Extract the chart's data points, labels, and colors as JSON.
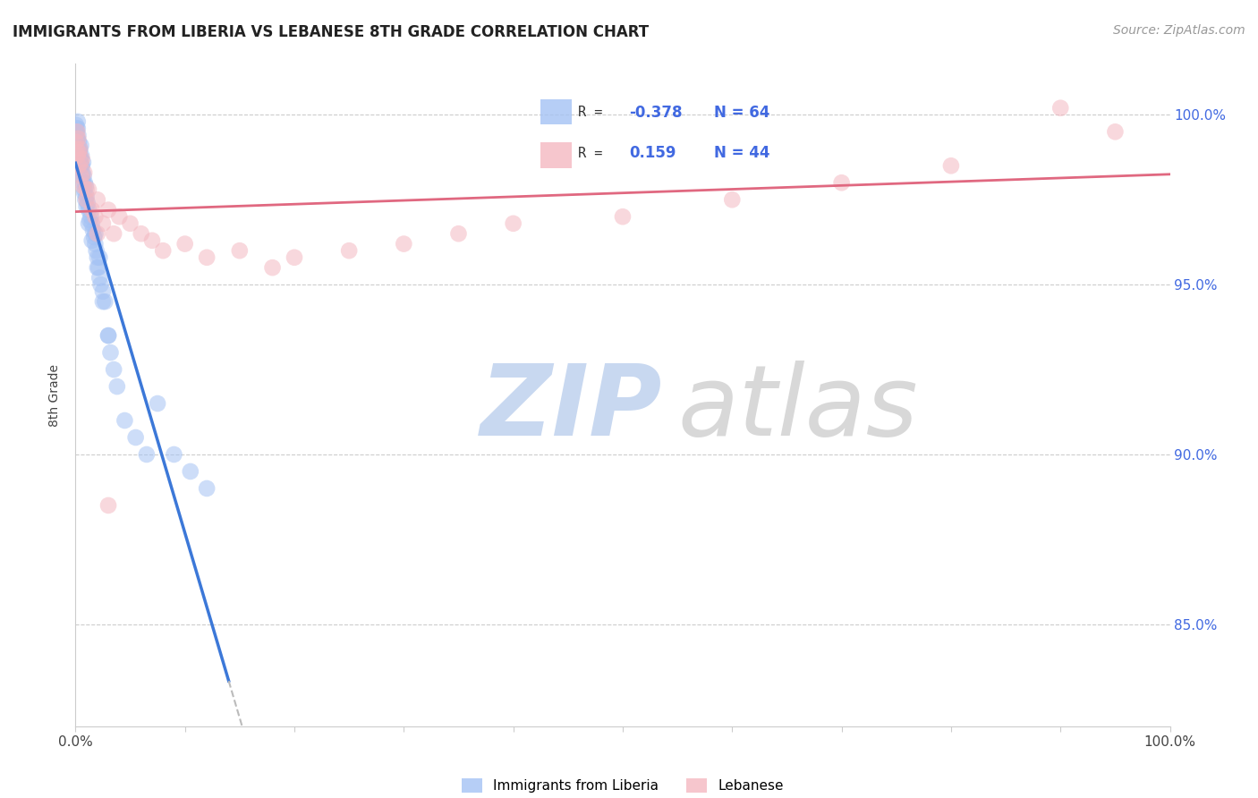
{
  "title": "IMMIGRANTS FROM LIBERIA VS LEBANESE 8TH GRADE CORRELATION CHART",
  "source": "Source: ZipAtlas.com",
  "ylabel": "8th Grade",
  "legend_blue_label": "Immigrants from Liberia",
  "legend_pink_label": "Lebanese",
  "R_blue": -0.378,
  "N_blue": 64,
  "R_pink": 0.159,
  "N_pink": 44,
  "blue_color": "#a4c2f4",
  "pink_color": "#f4b8c1",
  "blue_line_color": "#3c78d8",
  "pink_line_color": "#e06880",
  "dash_color": "#bbbbbb",
  "grid_color": "#cccccc",
  "right_tick_color": "#4169e1",
  "title_color": "#222222",
  "source_color": "#999999",
  "ylabel_color": "#444444",
  "xaxis_label_color": "#444444",
  "ylim_min": 82.0,
  "ylim_max": 101.5,
  "xlim_min": 0.0,
  "xlim_max": 100.0,
  "yticks": [
    85.0,
    90.0,
    95.0,
    100.0
  ],
  "ytick_labels": [
    "85.0%",
    "90.0%",
    "95.0%",
    "100.0%"
  ],
  "blue_scatter_x": [
    0.05,
    0.1,
    0.15,
    0.2,
    0.25,
    0.3,
    0.35,
    0.4,
    0.45,
    0.5,
    0.55,
    0.6,
    0.65,
    0.7,
    0.75,
    0.8,
    0.85,
    0.9,
    0.95,
    1.0,
    1.1,
    1.2,
    1.3,
    1.4,
    1.5,
    1.6,
    1.7,
    1.8,
    1.9,
    2.0,
    2.1,
    2.2,
    2.3,
    2.5,
    2.7,
    3.0,
    3.2,
    3.5,
    0.05,
    0.1,
    0.15,
    0.2,
    0.3,
    0.4,
    0.5,
    0.6,
    0.7,
    0.8,
    1.0,
    1.2,
    1.5,
    2.0,
    2.5,
    3.0,
    3.8,
    4.5,
    5.5,
    6.5,
    7.5,
    9.0,
    10.5,
    12.0,
    1.8,
    2.2
  ],
  "blue_scatter_y": [
    99.5,
    99.6,
    99.3,
    99.8,
    99.4,
    99.2,
    98.9,
    99.0,
    98.7,
    99.1,
    98.8,
    98.5,
    98.3,
    98.6,
    98.2,
    97.8,
    98.0,
    97.5,
    97.9,
    97.6,
    97.4,
    97.2,
    96.9,
    97.0,
    96.8,
    96.6,
    96.4,
    96.2,
    96.0,
    95.8,
    95.5,
    95.2,
    95.0,
    94.8,
    94.5,
    93.5,
    93.0,
    92.5,
    99.7,
    99.5,
    99.3,
    99.6,
    99.0,
    98.8,
    98.5,
    98.2,
    98.0,
    97.7,
    97.3,
    96.8,
    96.3,
    95.5,
    94.5,
    93.5,
    92.0,
    91.0,
    90.5,
    90.0,
    91.5,
    90.0,
    89.5,
    89.0,
    96.5,
    95.8
  ],
  "pink_scatter_x": [
    0.05,
    0.1,
    0.15,
    0.2,
    0.25,
    0.3,
    0.4,
    0.5,
    0.6,
    0.7,
    0.8,
    1.0,
    1.2,
    1.5,
    1.8,
    2.0,
    2.5,
    3.0,
    3.5,
    4.0,
    5.0,
    6.0,
    7.0,
    8.0,
    10.0,
    12.0,
    15.0,
    18.0,
    20.0,
    25.0,
    30.0,
    35.0,
    40.0,
    50.0,
    60.0,
    70.0,
    80.0,
    90.0,
    95.0,
    0.3,
    0.5,
    1.0,
    2.0,
    3.0
  ],
  "pink_scatter_y": [
    99.2,
    99.0,
    99.5,
    98.8,
    99.3,
    98.5,
    99.0,
    98.2,
    98.7,
    97.9,
    98.3,
    97.5,
    97.8,
    97.2,
    97.0,
    97.5,
    96.8,
    97.2,
    96.5,
    97.0,
    96.8,
    96.5,
    96.3,
    96.0,
    96.2,
    95.8,
    96.0,
    95.5,
    95.8,
    96.0,
    96.2,
    96.5,
    96.8,
    97.0,
    97.5,
    98.0,
    98.5,
    100.2,
    99.5,
    98.9,
    98.6,
    97.8,
    96.5,
    88.5
  ],
  "blue_solid_x_end": 14.0,
  "blue_dash_x_end": 50.0,
  "pink_line_x_start": 0.0,
  "pink_line_x_end": 100.0,
  "scatter_size": 180,
  "scatter_alpha": 0.55,
  "title_fontsize": 12,
  "source_fontsize": 10,
  "tick_fontsize": 11,
  "ylabel_fontsize": 10,
  "watermark_zip_color": "#c8d8f0",
  "watermark_atlas_color": "#d8d8d8"
}
